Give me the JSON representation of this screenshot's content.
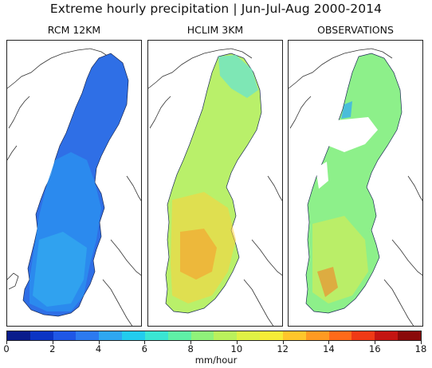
{
  "title": "Extreme hourly precipitation  |  Jun-Jul-Aug 2000-2014",
  "panels": [
    {
      "label": "RCM 12KM",
      "base_color": "#2f6fe6"
    },
    {
      "label": "HCLIM 3KM",
      "base_color": "#b9f06a"
    },
    {
      "label": "OBSERVATIONS",
      "base_color": "#8df08a"
    }
  ],
  "colorbar": {
    "min": 0,
    "max": 18,
    "tick_labels": [
      "0",
      "2",
      "4",
      "6",
      "8",
      "10",
      "12",
      "14",
      "16",
      "18"
    ],
    "unit": "mm/hour",
    "colors": [
      "#0a1c8c",
      "#0b34c4",
      "#1f57e6",
      "#2c7af0",
      "#2ea7f2",
      "#22ccee",
      "#3ae5d3",
      "#5ff0a6",
      "#8ff27a",
      "#baf15c",
      "#dff245",
      "#f6ec37",
      "#ffc62b",
      "#ff9a22",
      "#ff6a1a",
      "#f03a16",
      "#c41512",
      "#8a0a0a"
    ]
  }
}
